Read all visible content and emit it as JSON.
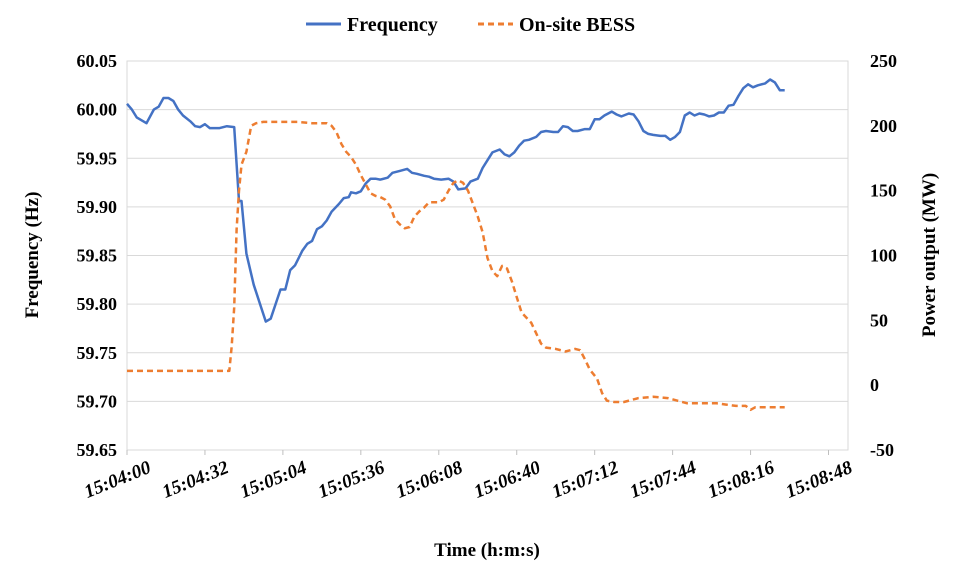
{
  "chart_data": {
    "type": "line",
    "xlabel": "Time (h:m:s)",
    "ylabel": "Frequency (Hz)",
    "y2label": "Power output (MW)",
    "x_ticks": [
      "15:04:00",
      "15:04:32",
      "15:05:04",
      "15:05:36",
      "15:06:08",
      "15:06:40",
      "15:07:12",
      "15:07:44",
      "15:08:16",
      "15:08:48"
    ],
    "x_tick_seconds": [
      0,
      32,
      64,
      96,
      128,
      160,
      192,
      224,
      256,
      288
    ],
    "xlim_seconds": [
      0,
      296
    ],
    "ylim": [
      59.65,
      60.05
    ],
    "y_ticks": [
      "59.65",
      "59.70",
      "59.75",
      "59.80",
      "59.85",
      "59.90",
      "59.95",
      "60.00",
      "60.05"
    ],
    "y2lim": [
      -50,
      250
    ],
    "y2_ticks": [
      "-50",
      "0",
      "50",
      "100",
      "150",
      "200",
      "250"
    ],
    "grid": "horizontal",
    "legend_position": "top-center",
    "series": [
      {
        "name": "Frequency",
        "axis": "left",
        "color": "#4472C4",
        "style": "solid",
        "points": [
          [
            0,
            60.006
          ],
          [
            2,
            60.0
          ],
          [
            4,
            59.992
          ],
          [
            8,
            59.986
          ],
          [
            11,
            60.0
          ],
          [
            13,
            60.003
          ],
          [
            15,
            60.012
          ],
          [
            17,
            60.012
          ],
          [
            19,
            60.009
          ],
          [
            21,
            60.0
          ],
          [
            23,
            59.994
          ],
          [
            26,
            59.988
          ],
          [
            28,
            59.983
          ],
          [
            30,
            59.982
          ],
          [
            32,
            59.985
          ],
          [
            34,
            59.981
          ],
          [
            38,
            59.981
          ],
          [
            41,
            59.983
          ],
          [
            44,
            59.982
          ],
          [
            46,
            59.906
          ],
          [
            47,
            59.906
          ],
          [
            49,
            59.852
          ],
          [
            52,
            59.82
          ],
          [
            55,
            59.797
          ],
          [
            57,
            59.782
          ],
          [
            59,
            59.785
          ],
          [
            61,
            59.8
          ],
          [
            63,
            59.815
          ],
          [
            65,
            59.815
          ],
          [
            67,
            59.835
          ],
          [
            69,
            59.84
          ],
          [
            72,
            59.855
          ],
          [
            74,
            59.862
          ],
          [
            76,
            59.865
          ],
          [
            78,
            59.877
          ],
          [
            80,
            59.88
          ],
          [
            82,
            59.886
          ],
          [
            84,
            59.895
          ],
          [
            87,
            59.903
          ],
          [
            89,
            59.909
          ],
          [
            91,
            59.91
          ],
          [
            92,
            59.915
          ],
          [
            94,
            59.914
          ],
          [
            96,
            59.916
          ],
          [
            98,
            59.924
          ],
          [
            100,
            59.929
          ],
          [
            102,
            59.929
          ],
          [
            104,
            59.928
          ],
          [
            107,
            59.93
          ],
          [
            109,
            59.935
          ],
          [
            112,
            59.937
          ],
          [
            115,
            59.939
          ],
          [
            117,
            59.935
          ],
          [
            119,
            59.934
          ],
          [
            122,
            59.932
          ],
          [
            124,
            59.931
          ],
          [
            126,
            59.929
          ],
          [
            129,
            59.928
          ],
          [
            132,
            59.929
          ],
          [
            134,
            59.926
          ],
          [
            136,
            59.918
          ],
          [
            139,
            59.919
          ],
          [
            141,
            59.926
          ],
          [
            144,
            59.929
          ],
          [
            146,
            59.94
          ],
          [
            148,
            59.948
          ],
          [
            150,
            59.956
          ],
          [
            153,
            59.959
          ],
          [
            155,
            59.954
          ],
          [
            157,
            59.952
          ],
          [
            159,
            59.956
          ],
          [
            161,
            59.963
          ],
          [
            163,
            59.968
          ],
          [
            165,
            59.969
          ],
          [
            168,
            59.972
          ],
          [
            170,
            59.977
          ],
          [
            172,
            59.978
          ],
          [
            175,
            59.977
          ],
          [
            177,
            59.977
          ],
          [
            179,
            59.983
          ],
          [
            181,
            59.982
          ],
          [
            183,
            59.978
          ],
          [
            185,
            59.978
          ],
          [
            188,
            59.98
          ],
          [
            190,
            59.98
          ],
          [
            192,
            59.99
          ],
          [
            194,
            59.99
          ],
          [
            196,
            59.994
          ],
          [
            199,
            59.998
          ],
          [
            201,
            59.995
          ],
          [
            203,
            59.993
          ],
          [
            206,
            59.996
          ],
          [
            208,
            59.995
          ],
          [
            210,
            59.988
          ],
          [
            212,
            59.978
          ],
          [
            214,
            59.975
          ],
          [
            216,
            59.974
          ],
          [
            219,
            59.973
          ],
          [
            221,
            59.973
          ],
          [
            223,
            59.969
          ],
          [
            225,
            59.972
          ],
          [
            227,
            59.977
          ],
          [
            229,
            59.994
          ],
          [
            231,
            59.997
          ],
          [
            233,
            59.994
          ],
          [
            235,
            59.996
          ],
          [
            237,
            59.995
          ],
          [
            239,
            59.993
          ],
          [
            241,
            59.994
          ],
          [
            243,
            59.997
          ],
          [
            245,
            59.997
          ],
          [
            247,
            60.004
          ],
          [
            249,
            60.005
          ],
          [
            251,
            60.014
          ],
          [
            253,
            60.022
          ],
          [
            255,
            60.026
          ],
          [
            257,
            60.023
          ],
          [
            259,
            60.025
          ],
          [
            262,
            60.027
          ],
          [
            264,
            60.031
          ],
          [
            266,
            60.028
          ],
          [
            268,
            60.02
          ],
          [
            270,
            60.02
          ]
        ]
      },
      {
        "name": "On-site BESS",
        "axis": "right",
        "color": "#ED7D31",
        "style": "dashed",
        "points": [
          [
            0,
            11
          ],
          [
            20,
            11
          ],
          [
            42,
            11
          ],
          [
            43,
            30
          ],
          [
            44,
            60
          ],
          [
            45,
            120
          ],
          [
            46,
            150
          ],
          [
            47,
            170
          ],
          [
            49,
            180
          ],
          [
            51,
            200
          ],
          [
            53,
            202
          ],
          [
            56,
            203
          ],
          [
            62,
            203
          ],
          [
            70,
            203
          ],
          [
            76,
            202
          ],
          [
            82,
            202
          ],
          [
            84,
            200
          ],
          [
            86,
            195
          ],
          [
            88,
            186
          ],
          [
            90,
            180
          ],
          [
            92,
            176
          ],
          [
            94,
            170
          ],
          [
            96,
            162
          ],
          [
            98,
            155
          ],
          [
            100,
            148
          ],
          [
            102,
            146
          ],
          [
            104,
            145
          ],
          [
            106,
            143
          ],
          [
            108,
            138
          ],
          [
            110,
            128
          ],
          [
            112,
            124
          ],
          [
            114,
            121
          ],
          [
            116,
            122
          ],
          [
            118,
            130
          ],
          [
            120,
            134
          ],
          [
            122,
            137
          ],
          [
            124,
            141
          ],
          [
            126,
            141
          ],
          [
            128,
            141
          ],
          [
            130,
            143
          ],
          [
            132,
            150
          ],
          [
            134,
            156
          ],
          [
            136,
            158
          ],
          [
            138,
            156
          ],
          [
            140,
            150
          ],
          [
            142,
            140
          ],
          [
            144,
            130
          ],
          [
            146,
            118
          ],
          [
            148,
            98
          ],
          [
            150,
            88
          ],
          [
            152,
            84
          ],
          [
            154,
            92
          ],
          [
            156,
            90
          ],
          [
            158,
            80
          ],
          [
            160,
            68
          ],
          [
            162,
            56
          ],
          [
            164,
            52
          ],
          [
            166,
            48
          ],
          [
            168,
            40
          ],
          [
            170,
            32
          ],
          [
            172,
            29
          ],
          [
            176,
            28
          ],
          [
            180,
            26
          ],
          [
            184,
            28
          ],
          [
            186,
            27
          ],
          [
            188,
            20
          ],
          [
            190,
            12
          ],
          [
            193,
            5
          ],
          [
            195,
            -6
          ],
          [
            197,
            -12
          ],
          [
            200,
            -13
          ],
          [
            204,
            -13
          ],
          [
            210,
            -10
          ],
          [
            216,
            -9
          ],
          [
            222,
            -10
          ],
          [
            226,
            -12
          ],
          [
            230,
            -14
          ],
          [
            236,
            -14
          ],
          [
            242,
            -14
          ],
          [
            246,
            -15
          ],
          [
            250,
            -16
          ],
          [
            254,
            -16
          ],
          [
            256,
            -19
          ],
          [
            258,
            -17
          ],
          [
            262,
            -17
          ],
          [
            266,
            -17
          ],
          [
            270,
            -17
          ]
        ]
      }
    ]
  }
}
